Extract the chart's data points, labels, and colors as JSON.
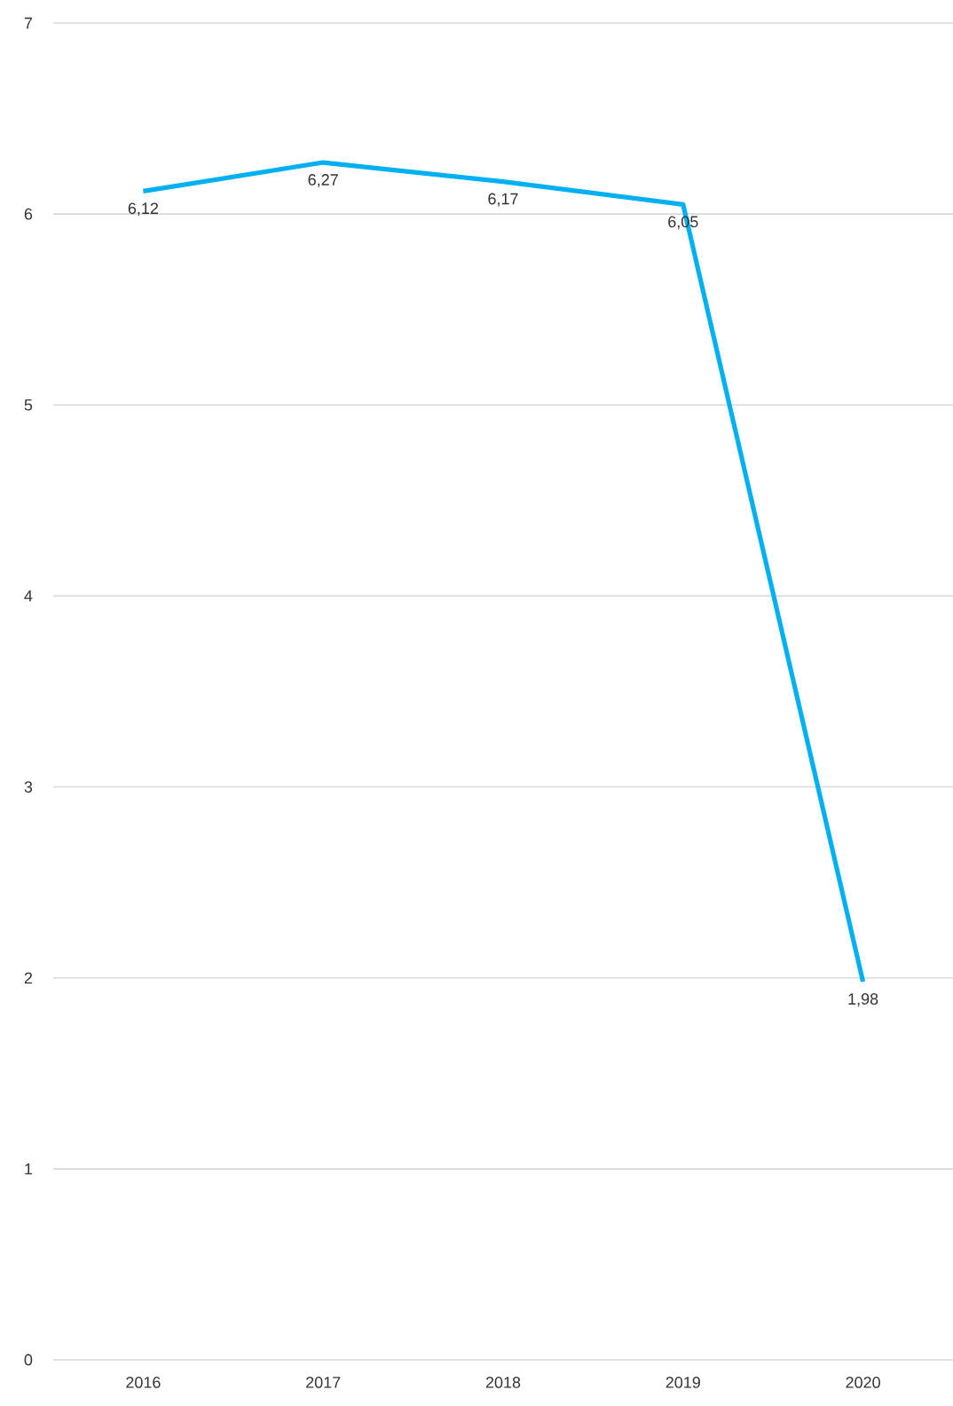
{
  "chart_data": {
    "type": "line",
    "categories": [
      "2016",
      "2017",
      "2018",
      "2019",
      "2020"
    ],
    "series": [
      {
        "color": "#00b0f0",
        "values": [
          6.12,
          6.27,
          6.17,
          6.05,
          1.98
        ],
        "value_labels": [
          "6,12",
          "6,27",
          "6,17",
          "6,05",
          "1,98"
        ]
      }
    ],
    "ylim": [
      0,
      7
    ],
    "yticks": [
      0,
      1,
      2,
      3,
      4,
      5,
      6,
      7
    ],
    "grid": "y",
    "marker": "none",
    "line_style": "solid"
  }
}
